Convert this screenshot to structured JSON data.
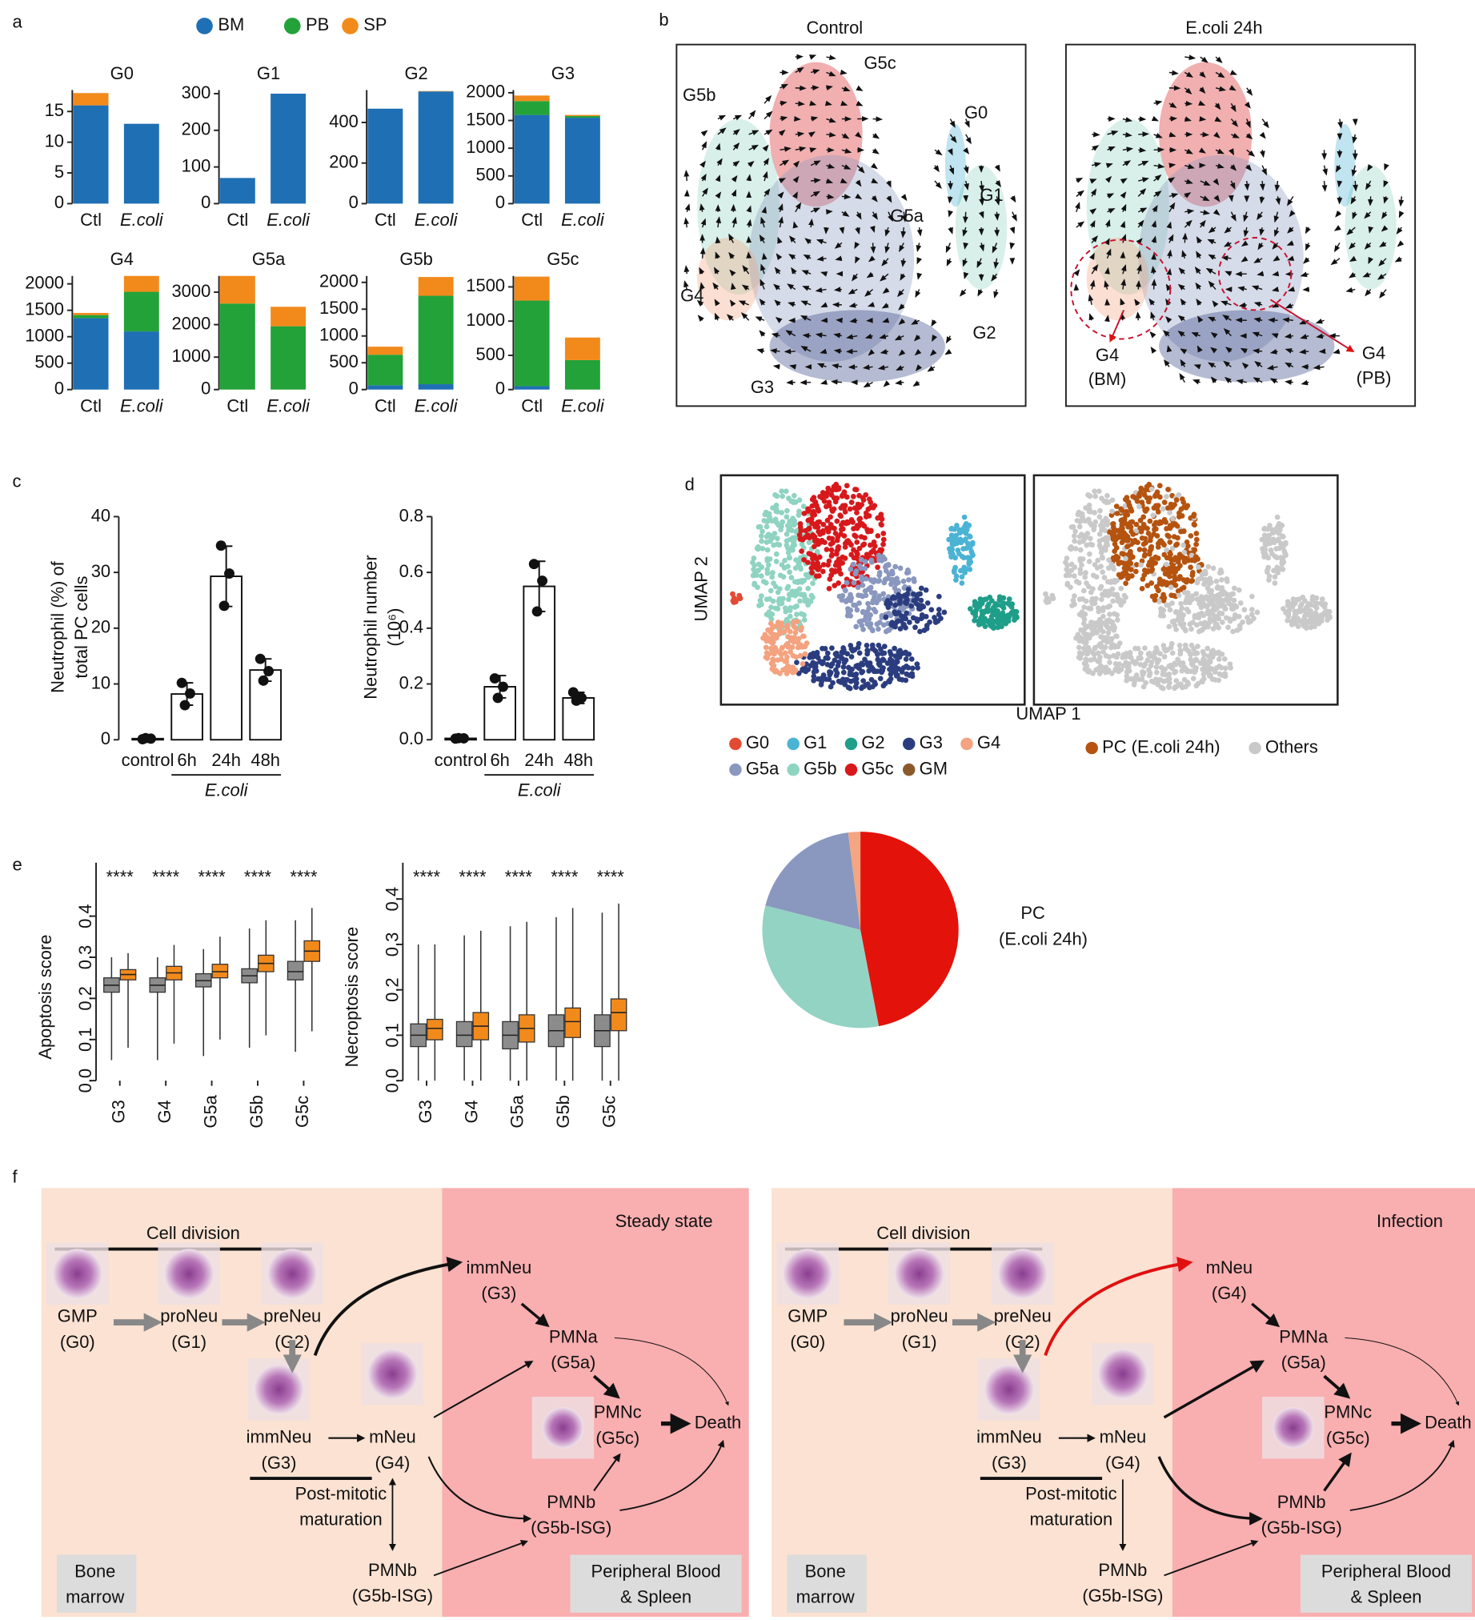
{
  "panel_labels": [
    "a",
    "b",
    "c",
    "d",
    "e",
    "f"
  ],
  "chart_data": [
    {
      "type": "stacked-bar-facets",
      "series": [
        {
          "name": "BM",
          "color": "#1f6fb4"
        },
        {
          "name": "PB",
          "color": "#23a23a"
        },
        {
          "name": "SP",
          "color": "#f28a1b"
        }
      ],
      "facets": [
        {
          "title": "G0",
          "categories": [
            "Ctl",
            "E.coli"
          ],
          "values": [
            [
              16,
              13
            ],
            [
              0,
              0
            ],
            [
              2,
              0
            ]
          ],
          "ylim": [
            0,
            18.5
          ],
          "yticks": [
            0,
            5,
            10,
            15
          ]
        },
        {
          "title": "G1",
          "categories": [
            "Ctl",
            "E.coli"
          ],
          "values": [
            [
              70,
              300
            ],
            [
              0,
              0
            ],
            [
              0,
              0
            ]
          ],
          "ylim": [
            0,
            310
          ],
          "yticks": [
            0,
            100,
            200,
            300
          ]
        },
        {
          "title": "G2",
          "categories": [
            "Ctl",
            "E.coli"
          ],
          "values": [
            [
              468,
              553
            ],
            [
              0,
              0
            ],
            [
              0,
              2
            ]
          ],
          "ylim": [
            0,
            560
          ],
          "yticks": [
            0,
            200,
            400
          ]
        },
        {
          "title": "G3",
          "categories": [
            "Ctl",
            "E.coli"
          ],
          "values": [
            [
              1600,
              1550
            ],
            [
              250,
              30
            ],
            [
              100,
              20
            ]
          ],
          "ylim": [
            0,
            2050
          ],
          "yticks": [
            0,
            500,
            1000,
            1500,
            2000
          ]
        },
        {
          "title": "G4",
          "categories": [
            "Ctl",
            "E.coli"
          ],
          "values": [
            [
              1350,
              1100
            ],
            [
              60,
              750
            ],
            [
              40,
              300
            ]
          ],
          "ylim": [
            0,
            2150
          ],
          "yticks": [
            0,
            500,
            1000,
            1500,
            2000
          ]
        },
        {
          "title": "G5a",
          "categories": [
            "Ctl",
            "E.coli"
          ],
          "values": [
            [
              0,
              0
            ],
            [
              2650,
              1950
            ],
            [
              850,
              600
            ]
          ],
          "ylim": [
            0,
            3500
          ],
          "yticks": [
            0,
            1000,
            2000,
            3000
          ]
        },
        {
          "title": "G5b",
          "categories": [
            "Ctl",
            "E.coli"
          ],
          "values": [
            [
              80,
              100
            ],
            [
              570,
              1650
            ],
            [
              150,
              350
            ]
          ],
          "ylim": [
            0,
            2120
          ],
          "yticks": [
            0,
            500,
            1000,
            1500,
            2000
          ]
        },
        {
          "title": "G5c",
          "categories": [
            "Ctl",
            "E.coli"
          ],
          "values": [
            [
              50,
              0
            ],
            [
              1250,
              430
            ],
            [
              350,
              330
            ]
          ],
          "ylim": [
            0,
            1660
          ],
          "yticks": [
            0,
            500,
            1000,
            1500
          ]
        }
      ]
    },
    {
      "type": "bar-points",
      "ylabel": [
        "Neutrophil (%) of",
        "total PC cells"
      ],
      "categories": [
        "control",
        "6h",
        "24h",
        "48h"
      ],
      "group_label": "E.coli",
      "values": [
        0.2,
        8.2,
        29.3,
        12.5
      ],
      "errors": [
        0.1,
        2.0,
        5.4,
        2.0
      ],
      "points": [
        [
          0.1,
          0.2,
          0.3
        ],
        [
          10.2,
          8.3,
          6.2
        ],
        [
          34.8,
          29.8,
          24.0
        ],
        [
          14.5,
          12.3,
          10.6
        ]
      ],
      "color": "#ffffff",
      "ylim": [
        0,
        40
      ],
      "yticks": [
        0,
        10,
        20,
        30,
        40
      ]
    },
    {
      "type": "bar-points",
      "ylabel": [
        "Neutrophil number",
        "(10⁶)"
      ],
      "categories": [
        "control",
        "6h",
        "24h",
        "48h"
      ],
      "group_label": "E.coli",
      "values": [
        0.005,
        0.19,
        0.55,
        0.15
      ],
      "errors": [
        0.003,
        0.04,
        0.09,
        0.02
      ],
      "points": [
        [
          0.004,
          0.005,
          0.006
        ],
        [
          0.22,
          0.19,
          0.15
        ],
        [
          0.63,
          0.57,
          0.46
        ],
        [
          0.17,
          0.15,
          0.14
        ]
      ],
      "color": "#ffffff",
      "ylim": [
        0,
        0.8
      ],
      "yticks": [
        {
          "value": 0,
          "label": "0.0"
        },
        0.2,
        0.4,
        0.6,
        0.8
      ]
    },
    {
      "type": "box",
      "ylabel": "Apoptosis score",
      "categories": [
        "G3",
        "G4",
        "G5a",
        "G5b",
        "G5c"
      ],
      "annotations": [
        "****",
        "****",
        "****",
        "****",
        "****"
      ],
      "series": [
        {
          "color": "#8c8c8c",
          "boxes": [
            [
              0.05,
              0.215,
              0.232,
              0.25,
              0.3
            ],
            [
              0.05,
              0.215,
              0.232,
              0.25,
              0.3
            ],
            [
              0.06,
              0.228,
              0.243,
              0.26,
              0.32
            ],
            [
              0.08,
              0.238,
              0.255,
              0.272,
              0.37
            ],
            [
              0.07,
              0.245,
              0.265,
              0.29,
              0.39
            ]
          ]
        },
        {
          "color": "#f28a1b",
          "boxes": [
            [
              0.08,
              0.245,
              0.258,
              0.27,
              0.31
            ],
            [
              0.09,
              0.245,
              0.262,
              0.278,
              0.33
            ],
            [
              0.1,
              0.25,
              0.265,
              0.283,
              0.35
            ],
            [
              0.11,
              0.265,
              0.285,
              0.305,
              0.39
            ],
            [
              0.12,
              0.29,
              0.315,
              0.34,
              0.42
            ]
          ]
        }
      ],
      "ylim": [
        0,
        0.53
      ],
      "yticks": [
        {
          "value": 0,
          "label": "0.0"
        },
        0.1,
        0.2,
        0.3,
        0.4
      ]
    },
    {
      "type": "box",
      "ylabel": "Necroptosis score",
      "categories": [
        "G3",
        "G4",
        "G5a",
        "G5b",
        "G5c"
      ],
      "annotations": [
        "****",
        "****",
        "****",
        "****",
        "****"
      ],
      "series": [
        {
          "color": "#8c8c8c",
          "boxes": [
            [
              0.0,
              0.075,
              0.1,
              0.125,
              0.3
            ],
            [
              0.0,
              0.075,
              0.1,
              0.13,
              0.32
            ],
            [
              0.0,
              0.07,
              0.1,
              0.13,
              0.34
            ],
            [
              0.0,
              0.075,
              0.11,
              0.145,
              0.36
            ],
            [
              0.0,
              0.075,
              0.11,
              0.145,
              0.37
            ]
          ]
        },
        {
          "color": "#f28a1b",
          "boxes": [
            [
              0.0,
              0.09,
              0.115,
              0.135,
              0.3
            ],
            [
              0.0,
              0.09,
              0.12,
              0.15,
              0.33
            ],
            [
              0.0,
              0.085,
              0.115,
              0.145,
              0.35
            ],
            [
              0.0,
              0.095,
              0.13,
              0.16,
              0.38
            ],
            [
              0.0,
              0.11,
              0.15,
              0.18,
              0.39
            ]
          ]
        }
      ],
      "ylim": [
        0,
        0.48
      ],
      "yticks": [
        {
          "value": 0,
          "label": "0.0"
        },
        0.1,
        0.2,
        0.3,
        0.4
      ]
    },
    {
      "type": "pie",
      "title": "PC",
      "subtitle": "(E.coli 24h)",
      "values": [
        47,
        32,
        19,
        2
      ],
      "colors": [
        "#e3120b",
        "#93d3c3",
        "#8a97bf",
        "#f4a582"
      ]
    }
  ],
  "velocity": {
    "panels": [
      {
        "title": "Control",
        "labels": [
          "G5c",
          "G5b",
          "G0",
          "G1",
          "G5a",
          "G4",
          "G2",
          "G3"
        ]
      },
      {
        "title": "E.coli 24h",
        "labels": [
          "G4",
          "(BM)",
          "G4",
          "(PB)"
        ]
      }
    ]
  },
  "umap": {
    "axis_labels": {
      "x": "UMAP 1",
      "y": "UMAP 2"
    },
    "clusters": [
      {
        "name": "G0",
        "color": "#e34a33"
      },
      {
        "name": "G1",
        "color": "#4bb3d4"
      },
      {
        "name": "G2",
        "color": "#1f9e89"
      },
      {
        "name": "G3",
        "color": "#2b3d7f"
      },
      {
        "name": "G4",
        "color": "#f4a27f"
      },
      {
        "name": "G5a",
        "color": "#8a97bf"
      },
      {
        "name": "G5b",
        "color": "#8fd3c1"
      },
      {
        "name": "G5c",
        "color": "#d7191c"
      },
      {
        "name": "GM",
        "color": "#8b5a2b"
      }
    ],
    "highlight": [
      {
        "name": "PC (E.coli 24h)",
        "color": "#b5530f"
      },
      {
        "name": "Others",
        "color": "#c9c9c9"
      }
    ]
  },
  "diagram": {
    "panels": [
      {
        "condition": "Steady state",
        "cell_division": "Cell division",
        "nodes": [
          [
            "GMP",
            "(G0)"
          ],
          [
            "proNeu",
            "(G1)"
          ],
          [
            "preNeu",
            "(G2)"
          ],
          [
            "immNeu",
            "(G3)"
          ],
          [
            "mNeu",
            "(G4)"
          ],
          [
            "immNeu",
            "(G3)"
          ],
          [
            "PMNa",
            "(G5a)"
          ],
          [
            "PMNc",
            "(G5c)"
          ],
          [
            "Death"
          ],
          [
            "PMNb",
            "(G5b-ISG)"
          ],
          [
            "PMNb",
            "(G5b-ISG)"
          ]
        ],
        "maturation": [
          "Post-mitotic",
          "maturation"
        ],
        "regions": [
          [
            "Bone",
            "marrow"
          ],
          [
            "Peripheral Blood",
            "& Spleen"
          ]
        ]
      },
      {
        "condition": "Infection",
        "cell_division": "Cell division",
        "nodes": [
          [
            "GMP",
            "(G0)"
          ],
          [
            "proNeu",
            "(G1)"
          ],
          [
            "preNeu",
            "(G2)"
          ],
          [
            "immNeu",
            "(G3)"
          ],
          [
            "mNeu",
            "(G4)"
          ],
          [
            "mNeu",
            "(G4)"
          ],
          [
            "PMNa",
            "(G5a)"
          ],
          [
            "PMNc",
            "(G5c)"
          ],
          [
            "Death"
          ],
          [
            "PMNb",
            "(G5b-ISG)"
          ],
          [
            "PMNb",
            "(G5b-ISG)"
          ]
        ],
        "maturation": [
          "Post-mitotic",
          "maturation"
        ],
        "regions": [
          [
            "Bone",
            "marrow"
          ],
          [
            "Peripheral Blood",
            "& Spleen"
          ]
        ]
      }
    ]
  }
}
